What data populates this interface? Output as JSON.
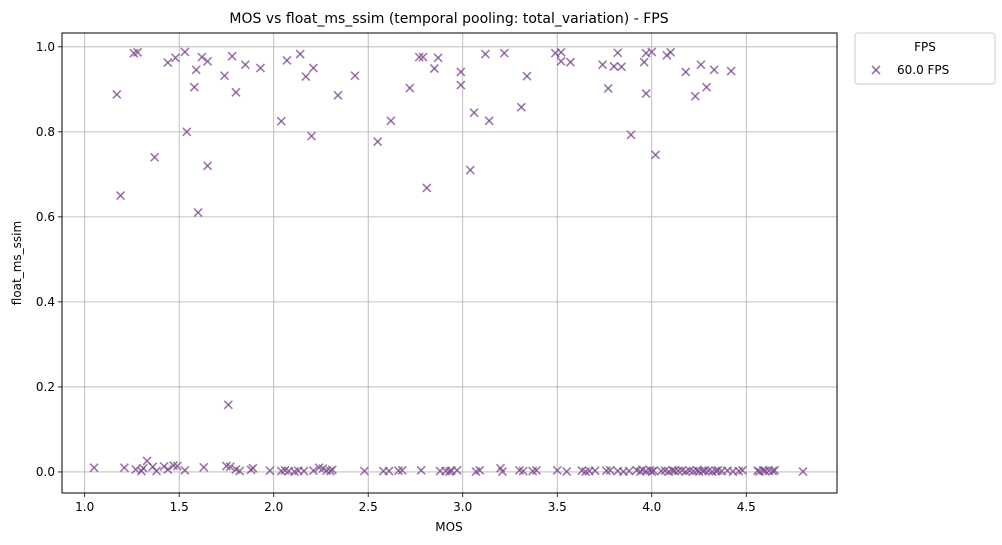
{
  "chart_data": {
    "type": "scatter",
    "title": "MOS vs float_ms_ssim (temporal pooling: total_variation) - FPS",
    "xlabel": "MOS",
    "ylabel": "float_ms_ssim",
    "xlim": [
      0.88,
      4.98
    ],
    "ylim": [
      -0.0495,
      1.0325
    ],
    "xticks": [
      1.0,
      1.5,
      2.0,
      2.5,
      3.0,
      3.5,
      4.0,
      4.5
    ],
    "xtick_labels": [
      "1.0",
      "1.5",
      "2.0",
      "2.5",
      "3.0",
      "3.5",
      "4.0",
      "4.5"
    ],
    "yticks": [
      0.0,
      0.2,
      0.4,
      0.6,
      0.8,
      1.0
    ],
    "ytick_labels": [
      "0.0",
      "0.2",
      "0.4",
      "0.6",
      "0.8",
      "1.0"
    ],
    "grid": true,
    "legend": {
      "title": "FPS",
      "placement": "outside-top-right"
    },
    "marker": "x",
    "series": [
      {
        "name": "60.0 FPS",
        "color": "#7b4a8c",
        "points": [
          [
            1.17,
            0.888
          ],
          [
            1.19,
            0.65
          ],
          [
            1.26,
            0.985
          ],
          [
            1.28,
            0.987
          ],
          [
            1.37,
            0.74
          ],
          [
            1.44,
            0.963
          ],
          [
            1.48,
            0.974
          ],
          [
            1.53,
            0.988
          ],
          [
            1.54,
            0.8
          ],
          [
            1.58,
            0.905
          ],
          [
            1.59,
            0.946
          ],
          [
            1.6,
            0.61
          ],
          [
            1.62,
            0.976
          ],
          [
            1.65,
            0.966
          ],
          [
            1.65,
            0.72
          ],
          [
            1.74,
            0.932
          ],
          [
            1.76,
            0.158
          ],
          [
            1.78,
            0.978
          ],
          [
            1.8,
            0.893
          ],
          [
            1.85,
            0.958
          ],
          [
            1.93,
            0.95
          ],
          [
            2.04,
            0.825
          ],
          [
            2.07,
            0.968
          ],
          [
            2.14,
            0.983
          ],
          [
            2.17,
            0.93
          ],
          [
            2.2,
            0.79
          ],
          [
            2.21,
            0.95
          ],
          [
            2.34,
            0.886
          ],
          [
            2.43,
            0.932
          ],
          [
            2.55,
            0.777
          ],
          [
            2.62,
            0.826
          ],
          [
            2.72,
            0.903
          ],
          [
            2.77,
            0.976
          ],
          [
            2.79,
            0.976
          ],
          [
            2.81,
            0.668
          ],
          [
            2.85,
            0.949
          ],
          [
            2.87,
            0.974
          ],
          [
            2.99,
            0.941
          ],
          [
            2.99,
            0.91
          ],
          [
            3.04,
            0.71
          ],
          [
            3.06,
            0.845
          ],
          [
            3.12,
            0.983
          ],
          [
            3.14,
            0.826
          ],
          [
            3.22,
            0.985
          ],
          [
            3.31,
            0.858
          ],
          [
            3.34,
            0.931
          ],
          [
            3.49,
            0.985
          ],
          [
            3.52,
            0.987
          ],
          [
            3.52,
            0.966
          ],
          [
            3.57,
            0.964
          ],
          [
            3.74,
            0.958
          ],
          [
            3.77,
            0.902
          ],
          [
            3.8,
            0.954
          ],
          [
            3.82,
            0.986
          ],
          [
            3.84,
            0.953
          ],
          [
            3.89,
            0.793
          ],
          [
            3.96,
            0.964
          ],
          [
            3.97,
            0.985
          ],
          [
            3.97,
            0.89
          ],
          [
            4.0,
            0.988
          ],
          [
            4.02,
            0.746
          ],
          [
            4.08,
            0.98
          ],
          [
            4.1,
            0.987
          ],
          [
            4.18,
            0.941
          ],
          [
            4.23,
            0.884
          ],
          [
            4.26,
            0.958
          ],
          [
            4.29,
            0.905
          ],
          [
            4.33,
            0.946
          ],
          [
            4.42,
            0.943
          ],
          [
            1.05,
            0.01
          ],
          [
            1.21,
            0.01
          ],
          [
            1.27,
            0.006
          ],
          [
            1.3,
            0.002
          ],
          [
            1.31,
            0.009
          ],
          [
            1.33,
            0.026
          ],
          [
            1.36,
            0.012
          ],
          [
            1.38,
            0.002
          ],
          [
            1.42,
            0.013
          ],
          [
            1.44,
            0.006
          ],
          [
            1.47,
            0.015
          ],
          [
            1.49,
            0.014
          ],
          [
            1.53,
            0.004
          ],
          [
            1.63,
            0.011
          ],
          [
            1.75,
            0.014
          ],
          [
            1.77,
            0.012
          ],
          [
            1.8,
            0.006
          ],
          [
            1.82,
            0.002
          ],
          [
            1.88,
            0.005
          ],
          [
            1.89,
            0.009
          ],
          [
            1.98,
            0.003
          ],
          [
            2.04,
            0.002
          ],
          [
            2.06,
            0.004
          ],
          [
            2.08,
            0.002
          ],
          [
            2.11,
            0.001
          ],
          [
            2.13,
            0.003
          ],
          [
            2.16,
            0.002
          ],
          [
            2.21,
            0.003
          ],
          [
            2.24,
            0.01
          ],
          [
            2.26,
            0.008
          ],
          [
            2.28,
            0.003
          ],
          [
            2.3,
            0.002
          ],
          [
            2.31,
            0.005
          ],
          [
            2.48,
            0.002
          ],
          [
            2.58,
            0.002
          ],
          [
            2.61,
            0.002
          ],
          [
            2.66,
            0.003
          ],
          [
            2.68,
            0.004
          ],
          [
            2.78,
            0.004
          ],
          [
            2.88,
            0.002
          ],
          [
            2.91,
            0.002
          ],
          [
            2.93,
            0.001
          ],
          [
            2.94,
            0.003
          ],
          [
            2.97,
            0.004
          ],
          [
            3.07,
            0.001
          ],
          [
            3.09,
            0.004
          ],
          [
            3.2,
            0.009
          ],
          [
            3.21,
            0.001
          ],
          [
            3.3,
            0.004
          ],
          [
            3.32,
            0.002
          ],
          [
            3.37,
            0.002
          ],
          [
            3.39,
            0.004
          ],
          [
            3.5,
            0.004
          ],
          [
            3.55,
            0.001
          ],
          [
            3.63,
            0.003
          ],
          [
            3.65,
            0.001
          ],
          [
            3.67,
            0.002
          ],
          [
            3.7,
            0.003
          ],
          [
            3.76,
            0.003
          ],
          [
            3.78,
            0.004
          ],
          [
            3.82,
            0.002
          ],
          [
            3.85,
            0.001
          ],
          [
            3.88,
            0.002
          ],
          [
            3.92,
            0.004
          ],
          [
            3.94,
            0.001
          ],
          [
            3.95,
            0.005
          ],
          [
            3.97,
            0.002
          ],
          [
            3.99,
            0.004
          ],
          [
            4.0,
            0.001
          ],
          [
            4.01,
            0.003
          ],
          [
            4.05,
            0.002
          ],
          [
            4.07,
            0.003
          ],
          [
            4.09,
            0.001
          ],
          [
            4.11,
            0.004
          ],
          [
            4.12,
            0.002
          ],
          [
            4.14,
            0.003
          ],
          [
            4.16,
            0.004
          ],
          [
            4.18,
            0.001
          ],
          [
            4.2,
            0.003
          ],
          [
            4.22,
            0.002
          ],
          [
            4.24,
            0.004
          ],
          [
            4.25,
            0.001
          ],
          [
            4.27,
            0.002
          ],
          [
            4.28,
            0.004
          ],
          [
            4.3,
            0.003
          ],
          [
            4.32,
            0.001
          ],
          [
            4.34,
            0.002
          ],
          [
            4.35,
            0.004
          ],
          [
            4.37,
            0.002
          ],
          [
            4.4,
            0.003
          ],
          [
            4.43,
            0.001
          ],
          [
            4.46,
            0.002
          ],
          [
            4.48,
            0.004
          ],
          [
            4.56,
            0.003
          ],
          [
            4.57,
            0.001
          ],
          [
            4.59,
            0.004
          ],
          [
            4.6,
            0.002
          ],
          [
            4.62,
            0.003
          ],
          [
            4.64,
            0.002
          ],
          [
            4.65,
            0.004
          ],
          [
            4.8,
            0.001
          ]
        ]
      }
    ]
  }
}
